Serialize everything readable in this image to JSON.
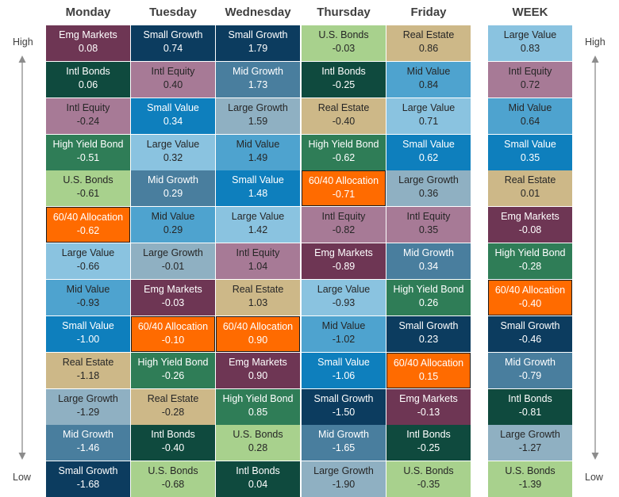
{
  "chart_data": {
    "type": "table",
    "columns": [
      "Monday",
      "Tuesday",
      "Wednesday",
      "Thursday",
      "Friday",
      "WEEK"
    ],
    "labels": {
      "high": "High",
      "low": "Low"
    },
    "colors": {
      "Emg Markets": "#6e3654",
      "Intl Bonds": "#0f4a3e",
      "Intl Equity": "#a77a96",
      "High Yield Bond": "#2f7d57",
      "U.S. Bonds": "#a8d18d",
      "60/40 Allocation": "#ff6b00",
      "Large Value": "#8ac3e0",
      "Mid Value": "#4ea3cf",
      "Small Value": "#0e7fbd",
      "Real Estate": "#cdb888",
      "Large Growth": "#8fb0c2",
      "Mid Growth": "#497e9e",
      "Small Growth": "#0c3c5f"
    },
    "dark_text": [
      "Intl Equity",
      "U.S. Bonds",
      "Large Value",
      "Mid Value",
      "Real Estate",
      "Large Growth"
    ],
    "cells": [
      [
        {
          "name": "Emg Markets",
          "value": "0.08"
        },
        {
          "name": "Intl Bonds",
          "value": "0.06"
        },
        {
          "name": "Intl Equity",
          "value": "-0.24"
        },
        {
          "name": "High Yield Bond",
          "value": "-0.51"
        },
        {
          "name": "U.S. Bonds",
          "value": "-0.61"
        },
        {
          "name": "60/40 Allocation",
          "value": "-0.62"
        },
        {
          "name": "Large Value",
          "value": "-0.66"
        },
        {
          "name": "Mid Value",
          "value": "-0.93"
        },
        {
          "name": "Small Value",
          "value": "-1.00"
        },
        {
          "name": "Real Estate",
          "value": "-1.18"
        },
        {
          "name": "Large Growth",
          "value": "-1.29"
        },
        {
          "name": "Mid Growth",
          "value": "-1.46"
        },
        {
          "name": "Small Growth",
          "value": "-1.68"
        }
      ],
      [
        {
          "name": "Small Growth",
          "value": "0.74"
        },
        {
          "name": "Intl Equity",
          "value": "0.40"
        },
        {
          "name": "Small Value",
          "value": "0.34"
        },
        {
          "name": "Large Value",
          "value": "0.32"
        },
        {
          "name": "Mid Growth",
          "value": "0.29"
        },
        {
          "name": "Mid Value",
          "value": "0.29"
        },
        {
          "name": "Large Growth",
          "value": "-0.01"
        },
        {
          "name": "Emg Markets",
          "value": "-0.03"
        },
        {
          "name": "60/40 Allocation",
          "value": "-0.10"
        },
        {
          "name": "High Yield Bond",
          "value": "-0.26"
        },
        {
          "name": "Real Estate",
          "value": "-0.28"
        },
        {
          "name": "Intl Bonds",
          "value": "-0.40"
        },
        {
          "name": "U.S. Bonds",
          "value": "-0.68"
        }
      ],
      [
        {
          "name": "Small Growth",
          "value": "1.79"
        },
        {
          "name": "Mid Growth",
          "value": "1.73"
        },
        {
          "name": "Large Growth",
          "value": "1.59"
        },
        {
          "name": "Mid Value",
          "value": "1.49"
        },
        {
          "name": "Small Value",
          "value": "1.48"
        },
        {
          "name": "Large Value",
          "value": "1.42"
        },
        {
          "name": "Intl Equity",
          "value": "1.04"
        },
        {
          "name": "Real Estate",
          "value": "1.03"
        },
        {
          "name": "60/40 Allocation",
          "value": "0.90"
        },
        {
          "name": "Emg Markets",
          "value": "0.90"
        },
        {
          "name": "High Yield Bond",
          "value": "0.85"
        },
        {
          "name": "U.S. Bonds",
          "value": "0.28"
        },
        {
          "name": "Intl Bonds",
          "value": "0.04"
        }
      ],
      [
        {
          "name": "U.S. Bonds",
          "value": "-0.03"
        },
        {
          "name": "Intl Bonds",
          "value": "-0.25"
        },
        {
          "name": "Real Estate",
          "value": "-0.40"
        },
        {
          "name": "High Yield Bond",
          "value": "-0.62"
        },
        {
          "name": "60/40 Allocation",
          "value": "-0.71"
        },
        {
          "name": "Intl Equity",
          "value": "-0.82"
        },
        {
          "name": "Emg Markets",
          "value": "-0.89"
        },
        {
          "name": "Large Value",
          "value": "-0.93"
        },
        {
          "name": "Mid Value",
          "value": "-1.02"
        },
        {
          "name": "Small Value",
          "value": "-1.06"
        },
        {
          "name": "Small Growth",
          "value": "-1.50"
        },
        {
          "name": "Mid Growth",
          "value": "-1.65"
        },
        {
          "name": "Large Growth",
          "value": "-1.90"
        }
      ],
      [
        {
          "name": "Real Estate",
          "value": "0.86"
        },
        {
          "name": "Mid Value",
          "value": "0.84"
        },
        {
          "name": "Large Value",
          "value": "0.71"
        },
        {
          "name": "Small Value",
          "value": "0.62"
        },
        {
          "name": "Large Growth",
          "value": "0.36"
        },
        {
          "name": "Intl Equity",
          "value": "0.35"
        },
        {
          "name": "Mid Growth",
          "value": "0.34"
        },
        {
          "name": "High Yield Bond",
          "value": "0.26"
        },
        {
          "name": "Small Growth",
          "value": "0.23"
        },
        {
          "name": "60/40 Allocation",
          "value": "0.15"
        },
        {
          "name": "Emg Markets",
          "value": "-0.13"
        },
        {
          "name": "Intl Bonds",
          "value": "-0.25"
        },
        {
          "name": "U.S. Bonds",
          "value": "-0.35"
        }
      ],
      [
        {
          "name": "Large Value",
          "value": "0.83"
        },
        {
          "name": "Intl Equity",
          "value": "0.72"
        },
        {
          "name": "Mid Value",
          "value": "0.64"
        },
        {
          "name": "Small Value",
          "value": "0.35"
        },
        {
          "name": "Real Estate",
          "value": "0.01"
        },
        {
          "name": "Emg Markets",
          "value": "-0.08"
        },
        {
          "name": "High Yield Bond",
          "value": "-0.28"
        },
        {
          "name": "60/40 Allocation",
          "value": "-0.40"
        },
        {
          "name": "Small Growth",
          "value": "-0.46"
        },
        {
          "name": "Mid Growth",
          "value": "-0.79"
        },
        {
          "name": "Intl Bonds",
          "value": "-0.81"
        },
        {
          "name": "Large Growth",
          "value": "-1.27"
        },
        {
          "name": "U.S. Bonds",
          "value": "-1.39"
        }
      ]
    ]
  }
}
